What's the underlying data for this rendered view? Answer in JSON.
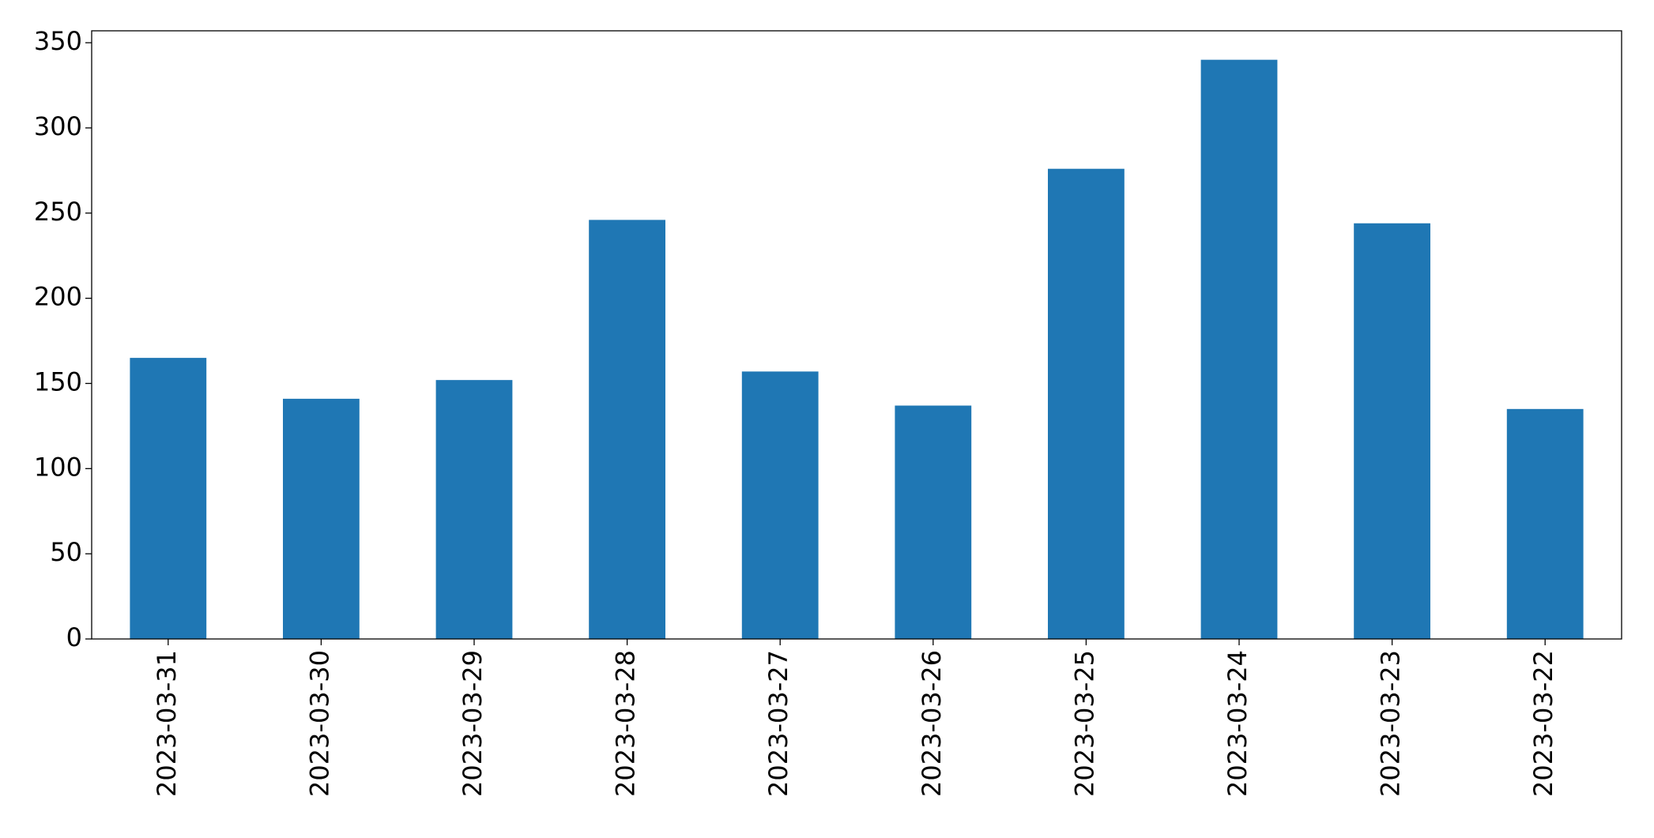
{
  "chart_data": {
    "type": "bar",
    "categories": [
      "2023-03-31",
      "2023-03-30",
      "2023-03-29",
      "2023-03-28",
      "2023-03-27",
      "2023-03-26",
      "2023-03-25",
      "2023-03-24",
      "2023-03-23",
      "2023-03-22"
    ],
    "values": [
      165,
      141,
      152,
      246,
      157,
      137,
      276,
      340,
      244,
      135
    ],
    "color": "#1f77b4",
    "ylim": [
      0,
      357
    ],
    "yticks": [
      0,
      50,
      100,
      150,
      200,
      250,
      300,
      350
    ],
    "grid": false
  }
}
